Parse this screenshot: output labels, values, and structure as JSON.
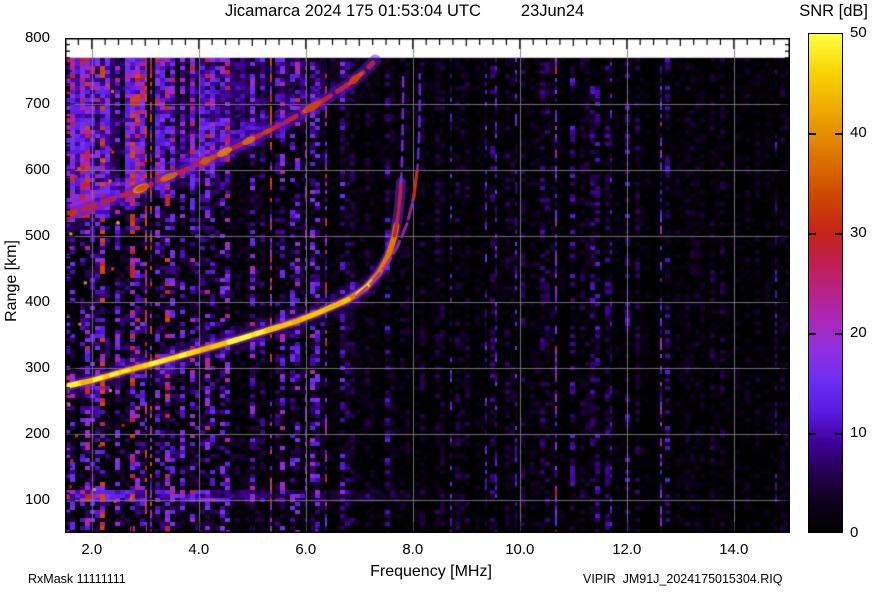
{
  "header": {
    "title": "Jicamarca 2024 175 01:53:04 UTC",
    "date": "23Jun24"
  },
  "colorbar": {
    "label": "SNR [dB]",
    "tick_labels": [
      "50",
      "40",
      "30",
      "20",
      "10",
      "0"
    ]
  },
  "axes": {
    "x_label": "Frequency [MHz]",
    "y_label": "Range [km]",
    "x_tick_labels": [
      "2.0",
      "4.0",
      "6.0",
      "8.0",
      "10.0",
      "12.0",
      "14.0"
    ],
    "y_tick_labels": [
      "800",
      "700",
      "600",
      "500",
      "400",
      "300",
      "200",
      "100"
    ]
  },
  "footer": {
    "rx_mask": "RxMask 11111111",
    "file_id": "VIPIR  JM91J_2024175015304.RIQ"
  },
  "chart_data": {
    "type": "heatmap",
    "title": "Jicamarca 2024 175 01:53:04 UTC",
    "date": "23Jun24",
    "xlabel": "Frequency [MHz]",
    "ylabel": "Range [km]",
    "zlabel": "SNR [dB]",
    "xlim": [
      1.5,
      15.05
    ],
    "ylim": [
      50,
      800
    ],
    "zlim": [
      0,
      50
    ],
    "data_top_km": 770,
    "grid": true,
    "x_major_tick_step": 2.0,
    "x_minor_tick_step": 0.25,
    "y_major_tick_step": 100,
    "y_minor_tick_step": 10,
    "x_labeled_ticks": [
      2,
      4,
      6,
      8,
      10,
      12,
      14
    ],
    "y_labeled_ticks": [
      800,
      700,
      600,
      500,
      400,
      300,
      200,
      100
    ],
    "colorbar_ticks": [
      0,
      10,
      20,
      30,
      40,
      50
    ],
    "noise_seed": 2024175,
    "palette_stops": [
      [
        0.0,
        "#000000"
      ],
      [
        0.06,
        "#0e001e"
      ],
      [
        0.12,
        "#26004e"
      ],
      [
        0.18,
        "#40009a"
      ],
      [
        0.24,
        "#5a1ae0"
      ],
      [
        0.3,
        "#6b2df2"
      ],
      [
        0.36,
        "#8c2fe0"
      ],
      [
        0.42,
        "#a827bc"
      ],
      [
        0.48,
        "#b82288"
      ],
      [
        0.54,
        "#c01e50"
      ],
      [
        0.6,
        "#c42318"
      ],
      [
        0.68,
        "#cf4a00"
      ],
      [
        0.76,
        "#dd7800"
      ],
      [
        0.84,
        "#eda400"
      ],
      [
        0.92,
        "#f8d200"
      ],
      [
        1.0,
        "#ffff40"
      ]
    ],
    "traces": {
      "f_region_o_mode": {
        "desc": "main F-layer O-mode echo, asymptote at foF2",
        "foF2_MHz": 7.8,
        "points_mhz_km": [
          [
            1.5,
            272
          ],
          [
            2.0,
            281
          ],
          [
            2.6,
            295
          ],
          [
            3.2,
            308
          ],
          [
            3.9,
            324
          ],
          [
            4.6,
            340
          ],
          [
            5.2,
            355
          ],
          [
            5.8,
            370
          ],
          [
            6.3,
            386
          ],
          [
            6.8,
            404
          ],
          [
            7.1,
            420
          ],
          [
            7.35,
            442
          ],
          [
            7.52,
            466
          ],
          [
            7.64,
            494
          ],
          [
            7.72,
            528
          ],
          [
            7.77,
            568
          ],
          [
            7.8,
            615
          ],
          [
            7.81,
            665
          ],
          [
            7.82,
            715
          ],
          [
            7.82,
            745
          ]
        ]
      },
      "f_region_x_mode": {
        "desc": "X-mode branch, asymptote at fxF2",
        "fxF2_MHz": 8.13,
        "points_mhz_km": [
          [
            6.95,
            408
          ],
          [
            7.25,
            430
          ],
          [
            7.5,
            455
          ],
          [
            7.72,
            485
          ],
          [
            7.9,
            520
          ],
          [
            8.02,
            560
          ],
          [
            8.09,
            605
          ],
          [
            8.12,
            655
          ],
          [
            8.13,
            705
          ],
          [
            8.13,
            745
          ]
        ]
      },
      "second_hop": {
        "desc": "diffuse upper echo with spread haze above",
        "points_mhz_km": [
          [
            1.5,
            531
          ],
          [
            2.1,
            548
          ],
          [
            2.8,
            568
          ],
          [
            3.6,
            595
          ],
          [
            4.4,
            624
          ],
          [
            5.1,
            651
          ],
          [
            5.7,
            676
          ],
          [
            6.3,
            704
          ],
          [
            6.8,
            730
          ],
          [
            7.1,
            750
          ],
          [
            7.3,
            766
          ]
        ]
      },
      "e_region_band": {
        "km_range": [
          98,
          118
        ],
        "mhz_range": [
          1.5,
          9.0
        ]
      }
    }
  }
}
